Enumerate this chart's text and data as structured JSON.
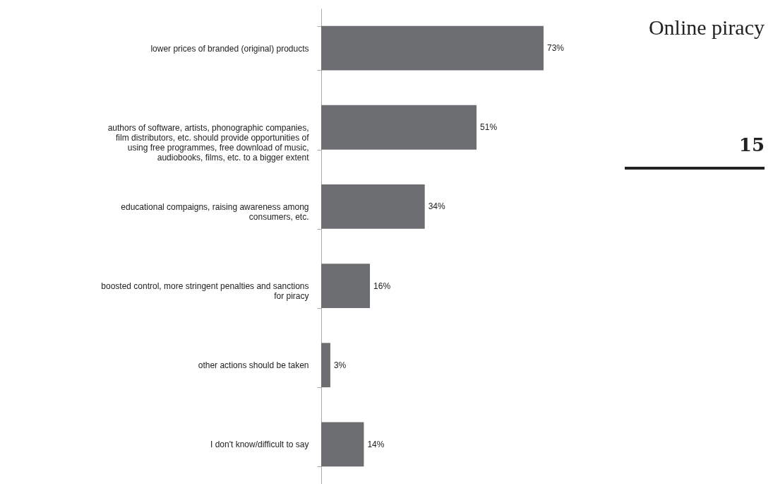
{
  "chart_data": {
    "type": "bar",
    "orientation": "horizontal",
    "categories": [
      "lower prices of branded (original) products",
      "authors of software, artists, phonographic companies, film distributors, etc. should provide opportunities of using free programmes, free download of music, audiobooks, films, etc. to a bigger extent",
      "educational compaigns, raising awareness among consumers, etc.",
      "boosted control, more stringent penalties and sanctions for piracy",
      "other actions should be taken",
      "I don't know/difficult to say"
    ],
    "values": [
      73,
      51,
      34,
      16,
      3,
      14
    ],
    "value_labels": [
      "73%",
      "51%",
      "34%",
      "16%",
      "3%",
      "14%"
    ],
    "color": "#6d6e71",
    "annotations": [
      "Online piracy",
      "15"
    ]
  }
}
